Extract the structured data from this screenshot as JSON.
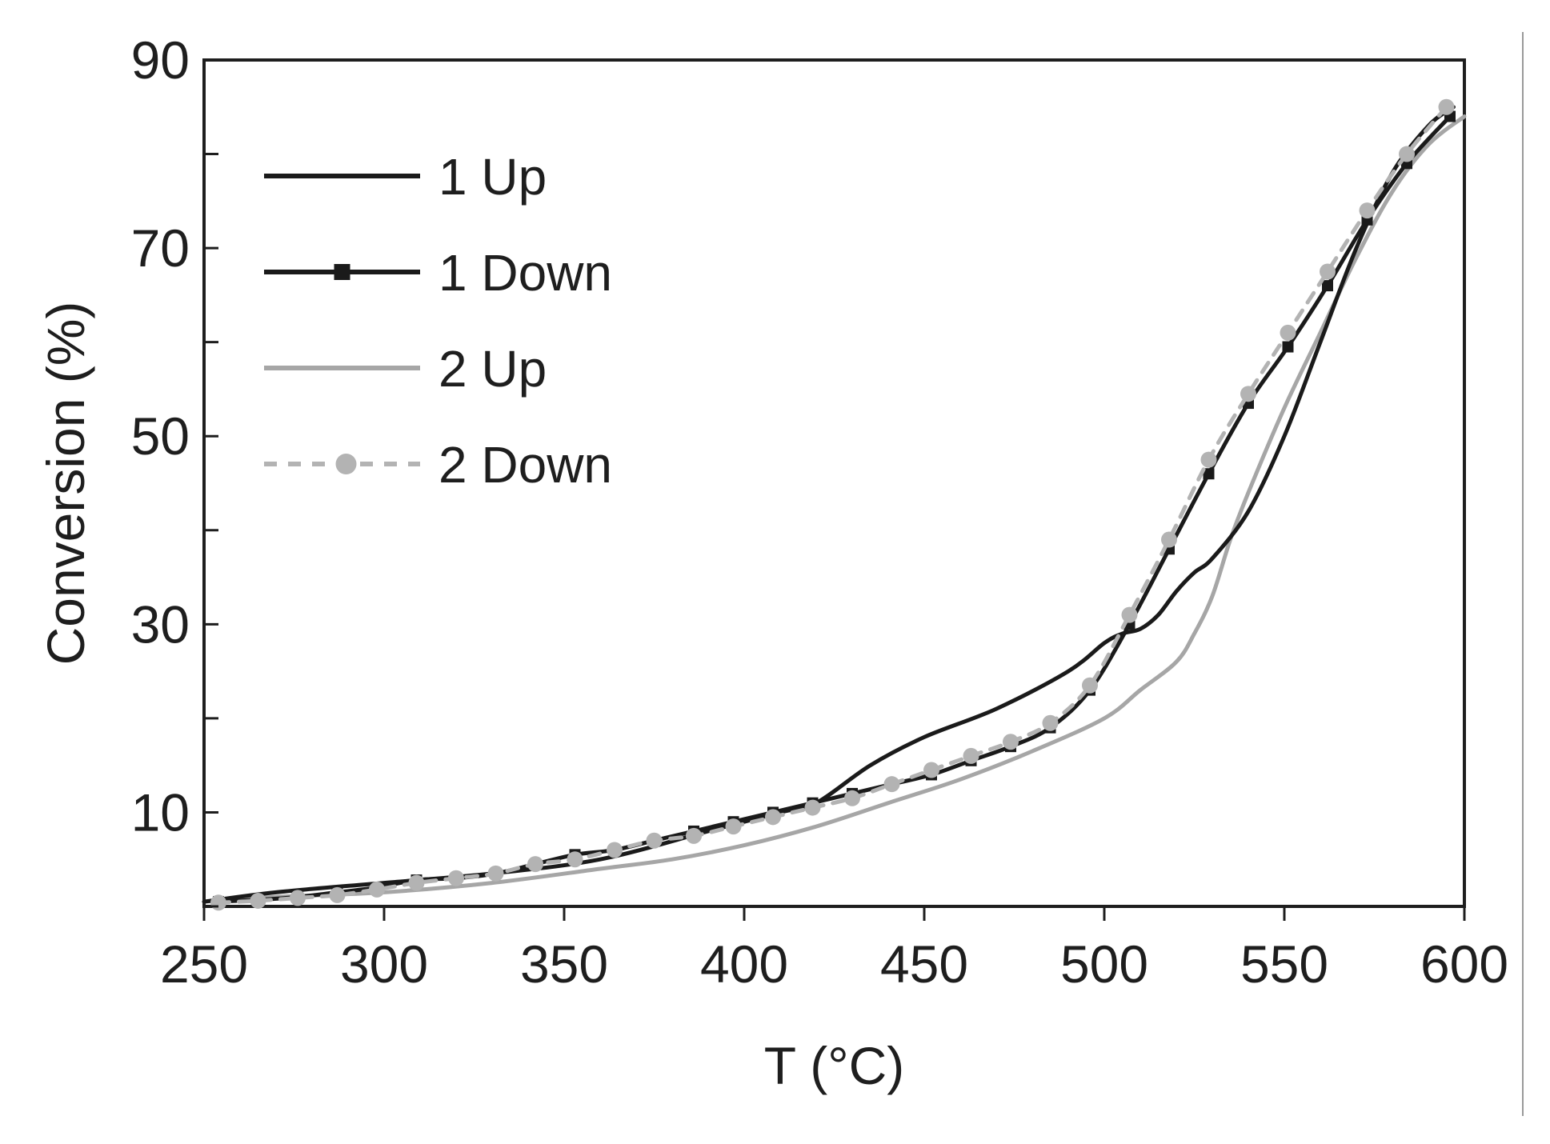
{
  "chart_data": {
    "type": "line",
    "xlabel": "T (°C)",
    "ylabel": "Conversion (%)",
    "xlim": [
      250,
      600
    ],
    "ylim": [
      0,
      90
    ],
    "xticks": [
      250,
      300,
      350,
      400,
      450,
      500,
      550,
      600
    ],
    "yticks": [
      10,
      30,
      50,
      70,
      90
    ],
    "grid": false,
    "legend_position": "top-left",
    "series": [
      {
        "name": "1 Up",
        "color": "#1a1a1a",
        "style": "solid",
        "marker": "none",
        "x": [
          250,
          270,
          300,
          330,
          360,
          390,
          410,
          420,
          435,
          450,
          470,
          490,
          500,
          505,
          510,
          515,
          520,
          525,
          530,
          540,
          550,
          560,
          570,
          580,
          590,
          597
        ],
        "y": [
          0.5,
          1.5,
          2.5,
          3.5,
          5,
          8,
          10,
          11,
          15,
          18,
          21,
          25,
          28,
          29,
          29.5,
          31,
          33.5,
          35.5,
          37,
          42,
          50,
          60,
          70,
          78,
          83,
          85
        ]
      },
      {
        "name": "1 Down",
        "color": "#1a1a1a",
        "style": "solid",
        "marker": "square",
        "x": [
          596,
          584,
          573,
          562,
          551,
          540,
          529,
          518,
          507,
          496,
          485,
          474,
          463,
          452,
          441,
          430,
          419,
          408,
          397,
          386,
          375,
          364,
          353,
          342,
          331,
          320,
          309,
          298,
          287,
          276,
          265,
          254
        ],
        "y": [
          84,
          79,
          73,
          66,
          59.5,
          53.5,
          46,
          38,
          30,
          23,
          19,
          17,
          15.5,
          14,
          13,
          12,
          11,
          10,
          9,
          8,
          7,
          6,
          5.5,
          4.5,
          3.5,
          3,
          2.8,
          2,
          1.5,
          1,
          0.7,
          0.5
        ]
      },
      {
        "name": "2 Up",
        "color": "#a6a6a6",
        "style": "solid",
        "marker": "none",
        "x": [
          250,
          270,
          300,
          330,
          360,
          380,
          400,
          420,
          440,
          460,
          480,
          500,
          510,
          520,
          525,
          530,
          535,
          540,
          550,
          560,
          570,
          580,
          590,
          600
        ],
        "y": [
          0.5,
          1,
          1.5,
          2.5,
          4,
          5,
          6.5,
          8.5,
          11,
          13.5,
          16.5,
          20,
          23,
          26,
          29,
          33,
          39,
          44,
          53,
          61,
          69,
          76,
          81,
          84
        ]
      },
      {
        "name": "2 Down",
        "color": "#b3b3b3",
        "style": "dashed",
        "marker": "circle",
        "x": [
          595,
          584,
          573,
          562,
          551,
          540,
          529,
          518,
          507,
          496,
          485,
          474,
          463,
          452,
          441,
          430,
          419,
          408,
          397,
          386,
          375,
          364,
          353,
          342,
          331,
          320,
          309,
          298,
          287,
          276,
          265,
          254
        ],
        "y": [
          85,
          80,
          74,
          67.5,
          61,
          54.5,
          47.5,
          39,
          31,
          23.5,
          19.5,
          17.5,
          16,
          14.5,
          13,
          11.5,
          10.5,
          9.5,
          8.5,
          7.5,
          7,
          6,
          5,
          4.5,
          3.5,
          3,
          2.5,
          1.8,
          1.2,
          0.9,
          0.6,
          0.4
        ]
      }
    ]
  }
}
